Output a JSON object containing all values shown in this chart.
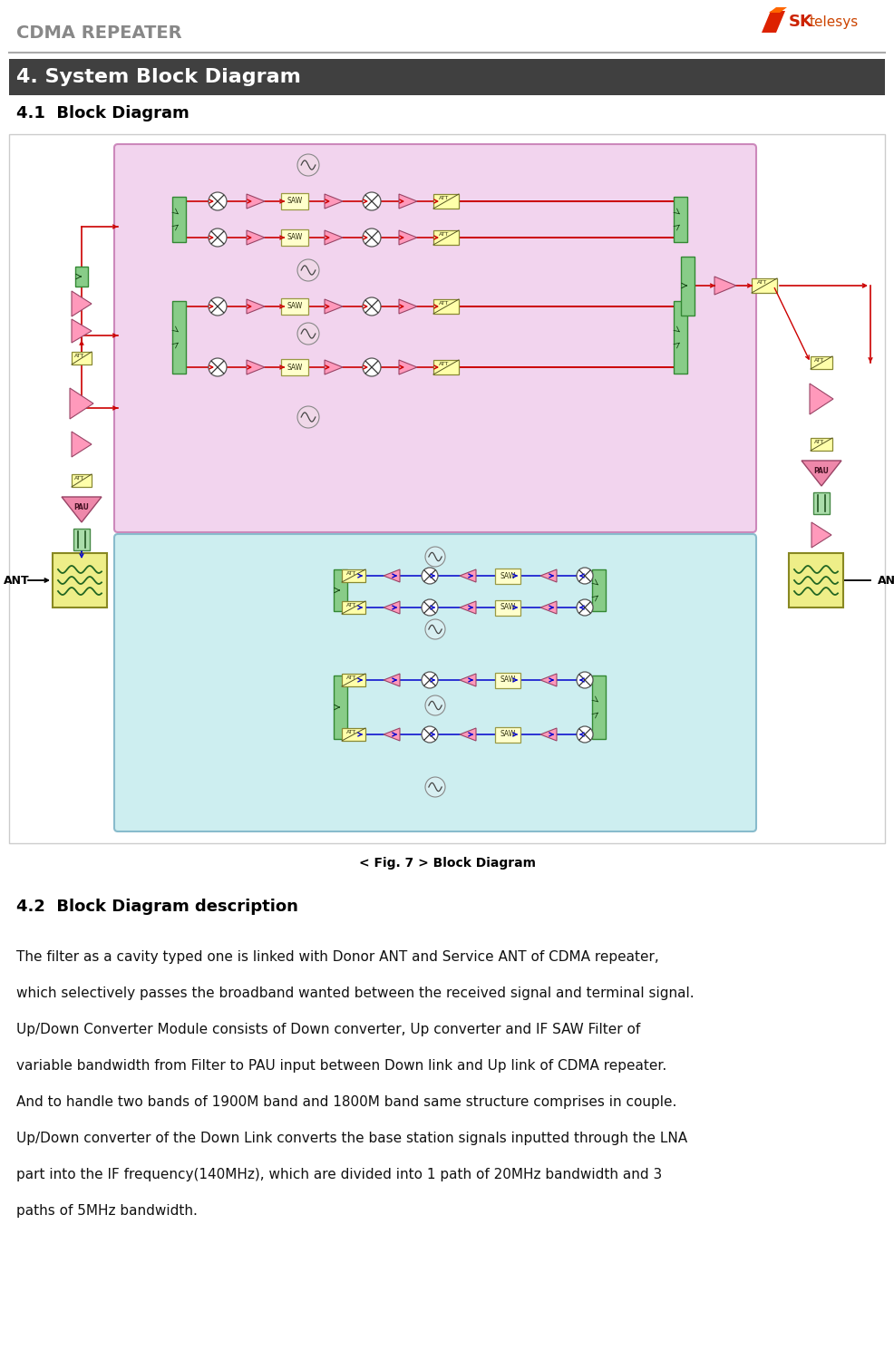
{
  "header_text": "CDMA REPEATER",
  "header_color": "#888888",
  "section_title": "4. System Block Diagram",
  "section_title_bg": "#404040",
  "section_title_color": "#ffffff",
  "subsection1_title": "4.1  Block Diagram",
  "figure_caption": "< Fig. 7 > Block Diagram",
  "subsection2_title": "4.2  Block Diagram description",
  "body_lines": [
    "The filter as a cavity typed one is linked with Donor ANT and Service ANT of CDMA repeater,",
    "which selectively passes the broadband wanted between the received signal and terminal signal.",
    "Up/Down Converter Module consists of Down converter, Up converter and IF SAW Filter of",
    "variable bandwidth from Filter to PAU input between Down link and Up link of CDMA repeater.",
    "And to handle two bands of 1900M band and 1800M band same structure comprises in couple.",
    "Up/Down converter of the Down Link converts the base station signals inputted through the LNA",
    "part into the IF frequency(140MHz), which are divided into 1 path of 20MHz bandwidth and 3",
    "paths of 5MHz bandwidth."
  ],
  "page_bg": "#ffffff",
  "pink_bg": "#f2d4ee",
  "cyan_bg": "#cdeef0",
  "yellow_bg": "#eeee88",
  "green_box": "#88cc88",
  "red_arrow": "#cc0000",
  "blue_arrow": "#0000cc",
  "amp_color": "#ff99bb",
  "saw_color": "#ffffcc",
  "att_color": "#ffffaa",
  "osc_color_pink": "#f0d8e8",
  "osc_color_cyan": "#d8eff2"
}
